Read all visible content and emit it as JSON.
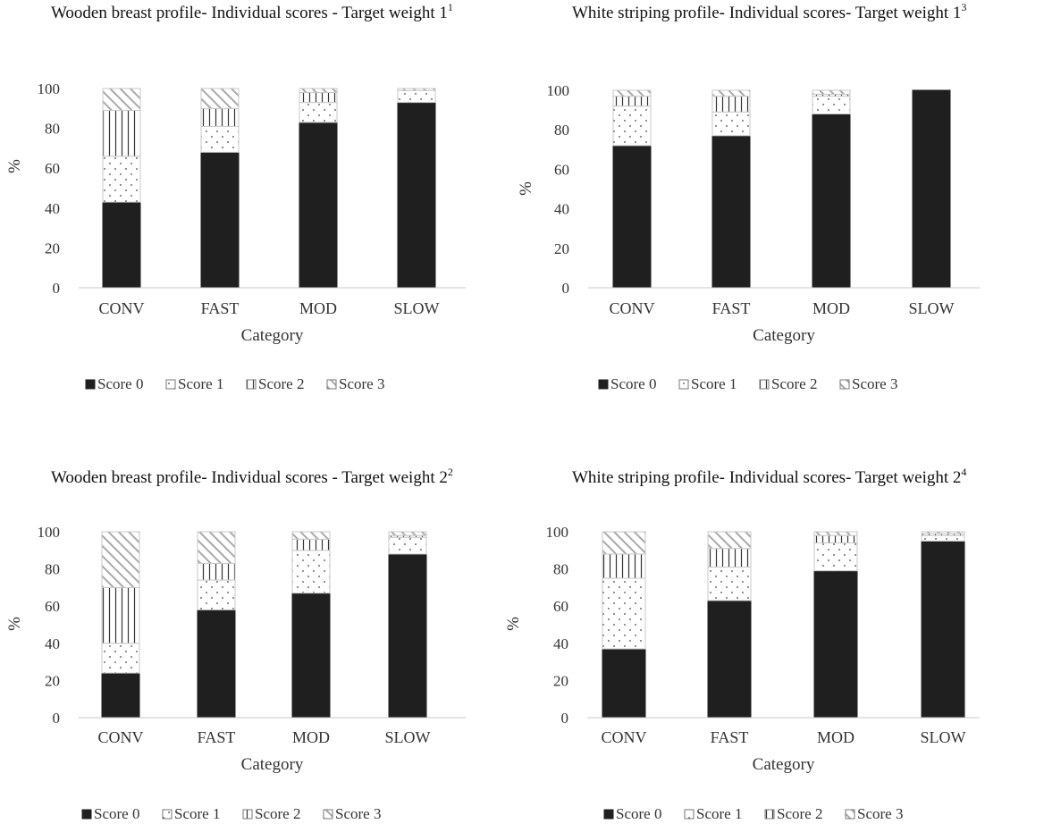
{
  "chart_data": [
    {
      "type": "bar",
      "stacked": true,
      "title": "Wooden breast profile- Individual scores - Target weight 1",
      "title_sup": "1",
      "xlabel": "Category",
      "ylabel": "%",
      "ylim": [
        0,
        100
      ],
      "yticks": [
        "0",
        "20",
        "40",
        "60",
        "80",
        "100"
      ],
      "categories": [
        "CONV",
        "FAST",
        "MOD",
        "SLOW"
      ],
      "series": [
        {
          "name": "Score 0",
          "values": [
            43,
            68,
            83,
            93
          ]
        },
        {
          "name": "Score 1",
          "values": [
            23,
            13,
            10,
            6
          ]
        },
        {
          "name": "Score 2",
          "values": [
            23,
            9,
            5,
            0
          ]
        },
        {
          "name": "Score 3",
          "values": [
            11,
            10,
            2,
            1
          ]
        }
      ],
      "legend": "bottom",
      "grid": false
    },
    {
      "type": "bar",
      "stacked": true,
      "title": "White striping profile- Individual scores- Target weight 1",
      "title_sup": "3",
      "xlabel": "Category",
      "ylabel": "%",
      "ylim": [
        0,
        100
      ],
      "yticks": [
        "0",
        "20",
        "40",
        "60",
        "80",
        "100"
      ],
      "categories": [
        "CONV",
        "FAST",
        "MOD",
        "SLOW"
      ],
      "series": [
        {
          "name": "Score 0",
          "values": [
            72,
            77,
            88,
            100
          ]
        },
        {
          "name": "Score 1",
          "values": [
            20,
            12,
            9,
            0
          ]
        },
        {
          "name": "Score 2",
          "values": [
            5,
            8,
            1,
            0
          ]
        },
        {
          "name": "Score 3",
          "values": [
            3,
            3,
            2,
            0
          ]
        }
      ],
      "legend": "bottom",
      "grid": false
    },
    {
      "type": "bar",
      "stacked": true,
      "title": "Wooden breast profile- Individual scores - Target weight 2",
      "title_sup": "2",
      "xlabel": "Category",
      "ylabel": "%",
      "ylim": [
        0,
        100
      ],
      "yticks": [
        "0",
        "20",
        "40",
        "60",
        "80",
        "100"
      ],
      "categories": [
        "CONV",
        "FAST",
        "MOD",
        "SLOW"
      ],
      "series": [
        {
          "name": "Score 0",
          "values": [
            24,
            58,
            67,
            88
          ]
        },
        {
          "name": "Score 1",
          "values": [
            16,
            16,
            23,
            9
          ]
        },
        {
          "name": "Score 2",
          "values": [
            30,
            9,
            6,
            1
          ]
        },
        {
          "name": "Score 3",
          "values": [
            30,
            17,
            4,
            2
          ]
        }
      ],
      "legend": "bottom",
      "grid": false
    },
    {
      "type": "bar",
      "stacked": true,
      "title": "White striping profile- Individual scores- Target weight 2",
      "title_sup": "4",
      "xlabel": "Category",
      "ylabel": "%",
      "ylim": [
        0,
        100
      ],
      "yticks": [
        "0",
        "20",
        "40",
        "60",
        "80",
        "100"
      ],
      "categories": [
        "CONV",
        "FAST",
        "MOD",
        "SLOW"
      ],
      "series": [
        {
          "name": "Score 0",
          "values": [
            37,
            63,
            79,
            95
          ]
        },
        {
          "name": "Score 1",
          "values": [
            38,
            18,
            15,
            3
          ]
        },
        {
          "name": "Score 2",
          "values": [
            13,
            10,
            4,
            1
          ]
        },
        {
          "name": "Score 3",
          "values": [
            12,
            9,
            2,
            1
          ]
        }
      ],
      "legend": "bottom",
      "grid": false
    }
  ]
}
